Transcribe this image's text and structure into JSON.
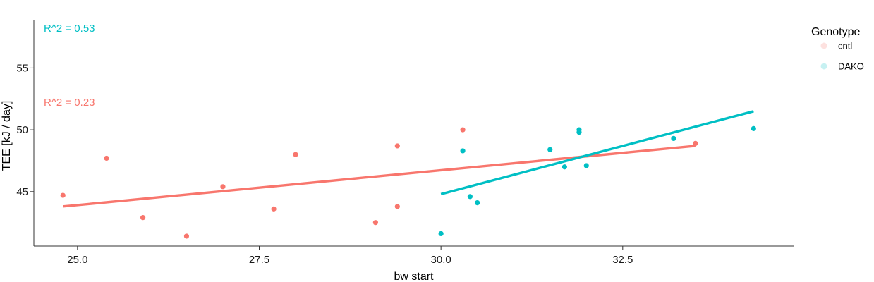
{
  "chart_data": {
    "type": "scatter",
    "xlabel": "bw start",
    "ylabel": "TEE [kJ / day]",
    "xlim": [
      24.4,
      34.85
    ],
    "ylim": [
      40.6,
      58.9
    ],
    "xticks": [
      25.0,
      27.5,
      30.0,
      32.5
    ],
    "yticks": [
      45,
      50,
      55
    ],
    "grid": false,
    "legend": {
      "title": "Genotype",
      "position": "right",
      "entries": [
        {
          "label": "cntl",
          "color": "#F8766D"
        },
        {
          "label": "DAKO",
          "color": "#00BFC4"
        }
      ]
    },
    "series": [
      {
        "name": "cntl",
        "color": "#F8766D",
        "points": [
          {
            "x": 24.8,
            "y": 44.7
          },
          {
            "x": 25.4,
            "y": 47.7
          },
          {
            "x": 25.9,
            "y": 42.9
          },
          {
            "x": 26.5,
            "y": 41.4
          },
          {
            "x": 27.0,
            "y": 45.4
          },
          {
            "x": 27.7,
            "y": 43.6
          },
          {
            "x": 28.0,
            "y": 48.0
          },
          {
            "x": 29.1,
            "y": 42.5
          },
          {
            "x": 29.4,
            "y": 43.8
          },
          {
            "x": 29.4,
            "y": 48.7
          },
          {
            "x": 30.3,
            "y": 50.0
          },
          {
            "x": 33.5,
            "y": 48.9
          }
        ],
        "fit": {
          "x": [
            24.8,
            33.5
          ],
          "y": [
            43.8,
            48.7
          ]
        },
        "annotation": "R^2 = 0.23"
      },
      {
        "name": "DAKO",
        "color": "#00BFC4",
        "points": [
          {
            "x": 30.0,
            "y": 41.6
          },
          {
            "x": 30.3,
            "y": 48.3
          },
          {
            "x": 30.4,
            "y": 44.6
          },
          {
            "x": 30.5,
            "y": 44.1
          },
          {
            "x": 31.5,
            "y": 48.4
          },
          {
            "x": 31.7,
            "y": 47.0
          },
          {
            "x": 31.9,
            "y": 50.0
          },
          {
            "x": 31.9,
            "y": 49.8
          },
          {
            "x": 32.0,
            "y": 47.1
          },
          {
            "x": 33.2,
            "y": 49.3
          },
          {
            "x": 34.3,
            "y": 50.1
          }
        ],
        "fit": {
          "x": [
            30.0,
            34.3
          ],
          "y": [
            44.8,
            51.5
          ]
        },
        "annotation": "R^2 = 0.53"
      }
    ]
  }
}
